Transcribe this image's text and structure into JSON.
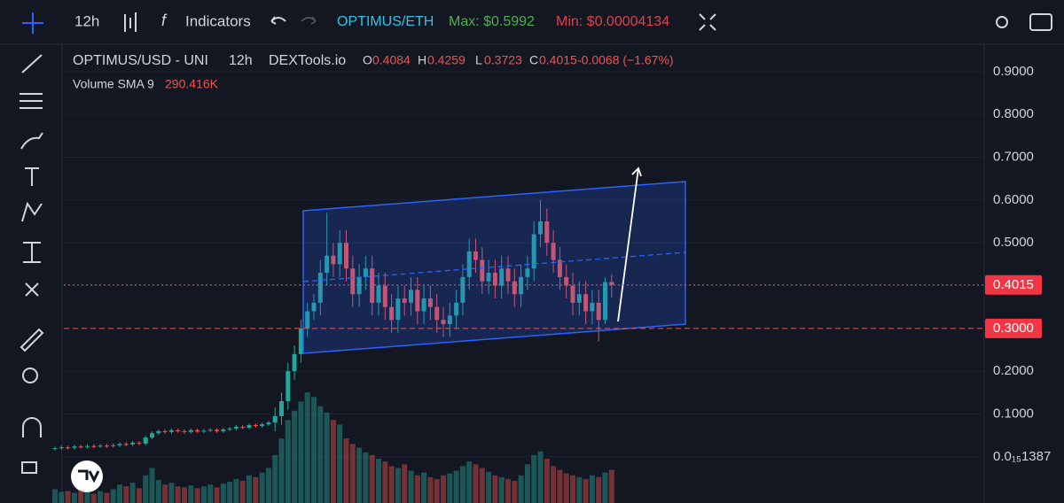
{
  "toolbar": {
    "interval": "12h",
    "indicators": "Indicators",
    "pair": "OPTIMUS/ETH",
    "max": "Max: $0.5992",
    "min": "Min: $0.00004134"
  },
  "chart_data": {
    "type": "candlestick",
    "legend": {
      "symbol": "OPTIMUS/USD - UNI",
      "interval": "12h",
      "source": "DEXTools.io",
      "o_label": "O",
      "o": "0.4084",
      "h_label": "H",
      "h": "0.4259",
      "l_label": "L",
      "l": "0.3723",
      "c_label": "C",
      "c": "0.4015",
      "change": "-0.0068 (−1.67%)",
      "volume_name": "Volume SMA 9",
      "volume_value": "290.416K"
    },
    "open": [
      0.019,
      0.02,
      0.022,
      0.021,
      0.024,
      0.023,
      0.025,
      0.024,
      0.026,
      0.025,
      0.027,
      0.03,
      0.029,
      0.033,
      0.031,
      0.045,
      0.055,
      0.06,
      0.058,
      0.062,
      0.06,
      0.058,
      0.062,
      0.059,
      0.061,
      0.063,
      0.06,
      0.064,
      0.066,
      0.07,
      0.068,
      0.074,
      0.072,
      0.076,
      0.08,
      0.095,
      0.13,
      0.2,
      0.24,
      0.3,
      0.34,
      0.36,
      0.43,
      0.47,
      0.45,
      0.5,
      0.44,
      0.38,
      0.42,
      0.44,
      0.36,
      0.4,
      0.35,
      0.32,
      0.37,
      0.36,
      0.39,
      0.34,
      0.37,
      0.35,
      0.32,
      0.31,
      0.33,
      0.36,
      0.42,
      0.48,
      0.46,
      0.41,
      0.43,
      0.4,
      0.44,
      0.41,
      0.38,
      0.42,
      0.44,
      0.52,
      0.55,
      0.5,
      0.46,
      0.42,
      0.4,
      0.36,
      0.38,
      0.34,
      0.36,
      0.32,
      0.4084
    ],
    "high": [
      0.024,
      0.026,
      0.026,
      0.028,
      0.028,
      0.029,
      0.029,
      0.03,
      0.03,
      0.031,
      0.034,
      0.034,
      0.037,
      0.037,
      0.049,
      0.059,
      0.064,
      0.064,
      0.066,
      0.066,
      0.064,
      0.066,
      0.066,
      0.065,
      0.067,
      0.067,
      0.068,
      0.07,
      0.074,
      0.074,
      0.078,
      0.078,
      0.08,
      0.084,
      0.115,
      0.15,
      0.22,
      0.26,
      0.32,
      0.36,
      0.38,
      0.46,
      0.57,
      0.5,
      0.53,
      0.53,
      0.47,
      0.45,
      0.47,
      0.47,
      0.43,
      0.43,
      0.38,
      0.4,
      0.4,
      0.42,
      0.42,
      0.4,
      0.4,
      0.38,
      0.35,
      0.36,
      0.39,
      0.45,
      0.51,
      0.51,
      0.49,
      0.46,
      0.46,
      0.47,
      0.47,
      0.44,
      0.45,
      0.47,
      0.55,
      0.6,
      0.58,
      0.53,
      0.49,
      0.45,
      0.43,
      0.41,
      0.41,
      0.39,
      0.39,
      0.42,
      0.4259
    ],
    "low": [
      0.015,
      0.016,
      0.017,
      0.017,
      0.019,
      0.019,
      0.02,
      0.02,
      0.021,
      0.021,
      0.023,
      0.025,
      0.025,
      0.027,
      0.027,
      0.041,
      0.051,
      0.054,
      0.054,
      0.056,
      0.054,
      0.054,
      0.055,
      0.055,
      0.057,
      0.056,
      0.056,
      0.06,
      0.062,
      0.064,
      0.064,
      0.068,
      0.068,
      0.072,
      0.06,
      0.075,
      0.11,
      0.18,
      0.22,
      0.28,
      0.32,
      0.33,
      0.4,
      0.42,
      0.42,
      0.41,
      0.35,
      0.35,
      0.39,
      0.33,
      0.33,
      0.32,
      0.29,
      0.29,
      0.33,
      0.33,
      0.31,
      0.31,
      0.32,
      0.29,
      0.28,
      0.28,
      0.3,
      0.33,
      0.39,
      0.43,
      0.38,
      0.38,
      0.37,
      0.37,
      0.38,
      0.35,
      0.35,
      0.39,
      0.41,
      0.49,
      0.47,
      0.43,
      0.39,
      0.37,
      0.33,
      0.33,
      0.31,
      0.31,
      0.27,
      0.31,
      0.3723
    ],
    "close": [
      0.02,
      0.022,
      0.021,
      0.024,
      0.023,
      0.025,
      0.024,
      0.026,
      0.025,
      0.027,
      0.03,
      0.029,
      0.033,
      0.031,
      0.045,
      0.055,
      0.06,
      0.058,
      0.062,
      0.06,
      0.058,
      0.062,
      0.059,
      0.061,
      0.063,
      0.06,
      0.064,
      0.066,
      0.07,
      0.068,
      0.074,
      0.072,
      0.076,
      0.08,
      0.095,
      0.13,
      0.2,
      0.24,
      0.3,
      0.34,
      0.36,
      0.43,
      0.47,
      0.45,
      0.5,
      0.44,
      0.38,
      0.42,
      0.44,
      0.36,
      0.4,
      0.35,
      0.32,
      0.37,
      0.36,
      0.39,
      0.34,
      0.37,
      0.35,
      0.32,
      0.31,
      0.33,
      0.36,
      0.42,
      0.48,
      0.46,
      0.41,
      0.43,
      0.4,
      0.44,
      0.41,
      0.38,
      0.42,
      0.44,
      0.52,
      0.55,
      0.5,
      0.46,
      0.42,
      0.4,
      0.36,
      0.38,
      0.34,
      0.36,
      0.32,
      0.4084,
      0.4015
    ],
    "volume": [
      150,
      120,
      130,
      110,
      140,
      120,
      100,
      130,
      110,
      150,
      200,
      180,
      220,
      160,
      300,
      380,
      250,
      200,
      220,
      180,
      170,
      190,
      160,
      180,
      200,
      170,
      210,
      230,
      260,
      240,
      300,
      280,
      330,
      380,
      520,
      700,
      900,
      1000,
      1100,
      1200,
      1150,
      1050,
      980,
      900,
      850,
      700,
      640,
      600,
      550,
      520,
      480,
      450,
      400,
      380,
      420,
      350,
      300,
      330,
      280,
      260,
      300,
      320,
      350,
      400,
      450,
      420,
      380,
      340,
      300,
      280,
      260,
      240,
      300,
      420,
      520,
      560,
      480,
      400,
      360,
      320,
      300,
      280,
      260,
      300,
      280,
      330,
      360
    ],
    "up_color": "#26a69a",
    "down_color": "#ef5350",
    "ylim": [
      -0.108,
      0.964
    ],
    "yticks": [
      {
        "value": 1.387e-16,
        "label": "0.0₁₅1387"
      },
      {
        "value": 0.1,
        "label": "0.1000"
      },
      {
        "value": 0.2,
        "label": "0.2000"
      },
      {
        "value": 0.3,
        "label": "0.3000"
      },
      {
        "value": 0.4,
        "label": "0.4000"
      },
      {
        "value": 0.5,
        "label": "0.5000"
      },
      {
        "value": 0.6,
        "label": "0.6000"
      },
      {
        "value": 0.7,
        "label": "0.7000"
      },
      {
        "value": 0.8,
        "label": "0.8000"
      },
      {
        "value": 0.9,
        "label": "0.9000"
      }
    ],
    "price_lines": [
      {
        "value": 0.4015,
        "label": "0.4015"
      },
      {
        "value": 0.3,
        "label": "0.3000"
      }
    ],
    "grid": true
  }
}
